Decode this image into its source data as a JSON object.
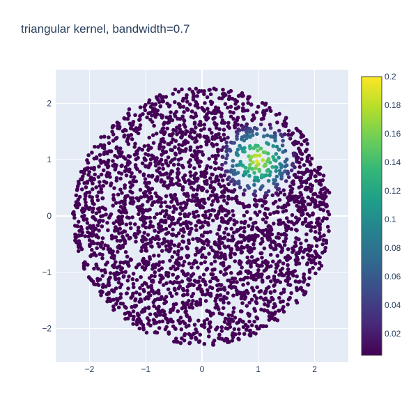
{
  "chart_data": {
    "type": "scatter",
    "title": "triangular kernel, bandwidth=0.7",
    "xlabel": "",
    "ylabel": "",
    "xlim": [
      -2.6,
      2.6
    ],
    "ylim": [
      -2.6,
      2.6
    ],
    "xticks": [
      -2,
      -1,
      0,
      1,
      2
    ],
    "xtick_labels": [
      "−2",
      "−1",
      "0",
      "1",
      "2"
    ],
    "yticks": [
      -2,
      -1,
      0,
      1,
      2
    ],
    "ytick_labels": [
      "−2",
      "−1",
      "0",
      "1",
      "2"
    ],
    "grid": true,
    "legend": false,
    "colorscale": "Viridis",
    "colorscale_stops": [
      "#440154",
      "#482878",
      "#3e4989",
      "#31688e",
      "#26828e",
      "#1f9e89",
      "#35b779",
      "#6ece58",
      "#b5de2b",
      "#fde725"
    ],
    "colorbar": {
      "min": 0.005,
      "max": 0.2,
      "ticks": [
        0.02,
        0.04,
        0.06,
        0.08,
        0.1,
        0.12,
        0.14,
        0.16,
        0.18,
        0.2
      ],
      "tick_labels": [
        "0.02",
        "0.04",
        "0.06",
        "0.08",
        "0.1",
        "0.12",
        "0.14",
        "0.16",
        "0.18",
        "0.2"
      ]
    },
    "points_description_only_for_generation": null,
    "sample_count": 3000,
    "sample_radius": 2.3,
    "kernel": {
      "type": "triangular",
      "center": [
        1,
        1
      ],
      "bandwidth": 0.7,
      "peak": 0.2,
      "floor": 0.005
    },
    "plot_bg": "#e5ecf6",
    "grid_color": "#ffffff",
    "text_color": "#2a3f5f"
  }
}
